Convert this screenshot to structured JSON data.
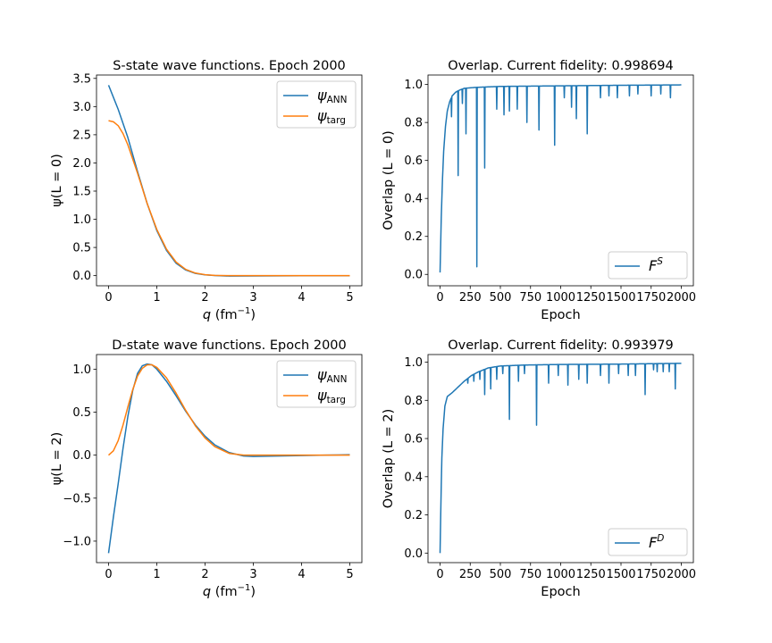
{
  "figure": {
    "background": "#ffffff"
  },
  "chart_data": [
    {
      "id": "s-wave",
      "type": "line",
      "title": "S-state wave functions. Epoch 2000",
      "xlabel": "q",
      "xlabel_unit": "(fm",
      "xlabel_unit_exp": "−1",
      "xlabel_unit_close": ")",
      "ylabel": "ψ(L = 0)",
      "xlim": [
        -0.25,
        5.25
      ],
      "ylim": [
        -0.18,
        3.56
      ],
      "xticks": [
        0,
        1,
        2,
        3,
        4,
        5
      ],
      "xtick_labels": [
        "0",
        "1",
        "2",
        "3",
        "4",
        "5"
      ],
      "yticks": [
        0,
        0.5,
        1.0,
        1.5,
        2.0,
        2.5,
        3.0,
        3.5
      ],
      "ytick_labels": [
        "0.0",
        "0.5",
        "1.0",
        "1.5",
        "2.0",
        "2.5",
        "3.0",
        "3.5"
      ],
      "grid": false,
      "legend": "top-right",
      "series": [
        {
          "name": "ψ",
          "sub": "ANN",
          "color": "#1f77b4",
          "x": [
            0,
            0.2,
            0.4,
            0.6,
            0.8,
            1.0,
            1.2,
            1.4,
            1.6,
            1.8,
            2.0,
            2.2,
            2.5,
            3.0,
            3.5,
            4.0,
            4.5,
            5.0
          ],
          "y": [
            3.38,
            2.95,
            2.45,
            1.85,
            1.28,
            0.8,
            0.45,
            0.22,
            0.1,
            0.04,
            0.015,
            0.003,
            -0.008,
            -0.005,
            -0.003,
            -0.002,
            -0.002,
            -0.002
          ]
        },
        {
          "name": "ψ",
          "sub": "targ",
          "color": "#ff7f0e",
          "x": [
            0,
            0.1,
            0.2,
            0.3,
            0.4,
            0.6,
            0.8,
            1.0,
            1.2,
            1.4,
            1.6,
            1.8,
            2.0,
            2.2,
            2.5,
            3.0,
            3.5,
            4.0,
            4.5,
            5.0
          ],
          "y": [
            2.75,
            2.73,
            2.66,
            2.52,
            2.32,
            1.82,
            1.28,
            0.82,
            0.47,
            0.24,
            0.11,
            0.045,
            0.017,
            0.005,
            0.0,
            0.0,
            0.0,
            0.0,
            0.0,
            0.0
          ]
        }
      ]
    },
    {
      "id": "s-overlap",
      "type": "line",
      "title": "Overlap. Current fidelity: 0.998694",
      "xlabel": "Epoch",
      "ylabel": "Overlap (L = 0)",
      "xlim": [
        -100,
        2100
      ],
      "ylim": [
        -0.06,
        1.05
      ],
      "xticks": [
        0,
        250,
        500,
        750,
        1000,
        1250,
        1500,
        1750,
        2000
      ],
      "xtick_labels": [
        "0",
        "250",
        "500",
        "750",
        "1000",
        "1250",
        "1500",
        "1750",
        "2000"
      ],
      "yticks": [
        0,
        0.2,
        0.4,
        0.6,
        0.8,
        1.0
      ],
      "ytick_labels": [
        "0.0",
        "0.2",
        "0.4",
        "0.6",
        "0.8",
        "1.0"
      ],
      "grid": false,
      "legend": "bottom-right",
      "series": [
        {
          "name": "F",
          "sup": "S",
          "color": "#1f77b4",
          "base": [
            [
              0,
              0.01
            ],
            [
              10,
              0.3
            ],
            [
              20,
              0.5
            ],
            [
              30,
              0.65
            ],
            [
              45,
              0.78
            ],
            [
              60,
              0.86
            ],
            [
              80,
              0.91
            ],
            [
              100,
              0.94
            ],
            [
              130,
              0.96
            ],
            [
              160,
              0.97
            ],
            [
              200,
              0.98
            ],
            [
              300,
              0.985
            ],
            [
              500,
              0.99
            ],
            [
              1000,
              0.993
            ],
            [
              1500,
              0.996
            ],
            [
              2000,
              0.998
            ]
          ],
          "dips": [
            [
              95,
              0.83
            ],
            [
              150,
              0.52
            ],
            [
              185,
              0.9
            ],
            [
              215,
              0.74
            ],
            [
              305,
              0.04
            ],
            [
              370,
              0.56
            ],
            [
              470,
              0.87
            ],
            [
              530,
              0.84
            ],
            [
              575,
              0.86
            ],
            [
              640,
              0.87
            ],
            [
              720,
              0.8
            ],
            [
              820,
              0.76
            ],
            [
              950,
              0.68
            ],
            [
              1030,
              0.93
            ],
            [
              1090,
              0.88
            ],
            [
              1130,
              0.82
            ],
            [
              1220,
              0.74
            ],
            [
              1330,
              0.93
            ],
            [
              1400,
              0.94
            ],
            [
              1470,
              0.93
            ],
            [
              1570,
              0.94
            ],
            [
              1640,
              0.95
            ],
            [
              1750,
              0.94
            ],
            [
              1830,
              0.95
            ],
            [
              1910,
              0.93
            ]
          ]
        }
      ]
    },
    {
      "id": "d-wave",
      "type": "line",
      "title": "D-state wave functions. Epoch 2000",
      "xlabel": "q",
      "xlabel_unit": "(fm",
      "xlabel_unit_exp": "−1",
      "xlabel_unit_close": ")",
      "ylabel": "ψ(L = 2)",
      "xlim": [
        -0.25,
        5.25
      ],
      "ylim": [
        -1.25,
        1.17
      ],
      "xticks": [
        0,
        1,
        2,
        3,
        4,
        5
      ],
      "xtick_labels": [
        "0",
        "1",
        "2",
        "3",
        "4",
        "5"
      ],
      "yticks": [
        -1.0,
        -0.5,
        0,
        0.5,
        1.0
      ],
      "ytick_labels": [
        "−1.0",
        "−0.5",
        "0.0",
        "0.5",
        "1.0"
      ],
      "grid": false,
      "legend": "top-right",
      "series": [
        {
          "name": "ψ",
          "sub": "ANN",
          "color": "#1f77b4",
          "x": [
            0,
            0.1,
            0.2,
            0.3,
            0.4,
            0.5,
            0.6,
            0.7,
            0.8,
            0.9,
            1.0,
            1.2,
            1.4,
            1.6,
            1.8,
            2.0,
            2.2,
            2.5,
            2.8,
            3.0,
            3.5,
            4.0,
            4.5,
            5.0
          ],
          "y": [
            -1.14,
            -0.72,
            -0.33,
            0.08,
            0.45,
            0.75,
            0.95,
            1.04,
            1.06,
            1.05,
            1.0,
            0.86,
            0.69,
            0.51,
            0.35,
            0.22,
            0.12,
            0.03,
            -0.01,
            -0.015,
            -0.01,
            -0.005,
            0.0,
            0.005
          ]
        },
        {
          "name": "ψ",
          "sub": "targ",
          "color": "#ff7f0e",
          "x": [
            0,
            0.1,
            0.2,
            0.3,
            0.4,
            0.5,
            0.6,
            0.7,
            0.8,
            0.9,
            1.0,
            1.2,
            1.4,
            1.6,
            1.8,
            2.0,
            2.2,
            2.5,
            2.8,
            3.0,
            3.5,
            4.0,
            4.5,
            5.0
          ],
          "y": [
            0.0,
            0.05,
            0.17,
            0.35,
            0.56,
            0.76,
            0.92,
            1.01,
            1.05,
            1.05,
            1.02,
            0.9,
            0.72,
            0.52,
            0.34,
            0.2,
            0.1,
            0.02,
            0.0,
            0.0,
            0.0,
            0.0,
            0.0,
            0.0
          ]
        }
      ]
    },
    {
      "id": "d-overlap",
      "type": "line",
      "title": "Overlap. Current fidelity: 0.993979",
      "xlabel": "Epoch",
      "ylabel": "Overlap (L = 2)",
      "xlim": [
        -100,
        2100
      ],
      "ylim": [
        -0.05,
        1.04
      ],
      "xticks": [
        0,
        250,
        500,
        750,
        1000,
        1250,
        1500,
        1750,
        2000
      ],
      "xtick_labels": [
        "0",
        "250",
        "500",
        "750",
        "1000",
        "1250",
        "1500",
        "1750",
        "2000"
      ],
      "yticks": [
        0,
        0.2,
        0.4,
        0.6,
        0.8,
        1.0
      ],
      "ytick_labels": [
        "0.0",
        "0.2",
        "0.4",
        "0.6",
        "0.8",
        "1.0"
      ],
      "grid": false,
      "legend": "bottom-right",
      "series": [
        {
          "name": "F",
          "sup": "D",
          "color": "#1f77b4",
          "base": [
            [
              0,
              0.0
            ],
            [
              8,
              0.3
            ],
            [
              15,
              0.5
            ],
            [
              25,
              0.65
            ],
            [
              40,
              0.77
            ],
            [
              60,
              0.82
            ],
            [
              100,
              0.84
            ],
            [
              150,
              0.87
            ],
            [
              200,
              0.9
            ],
            [
              260,
              0.93
            ],
            [
              320,
              0.95
            ],
            [
              400,
              0.97
            ],
            [
              500,
              0.98
            ],
            [
              700,
              0.985
            ],
            [
              1000,
              0.988
            ],
            [
              1500,
              0.99
            ],
            [
              2000,
              0.994
            ]
          ],
          "dips": [
            [
              230,
              0.89
            ],
            [
              280,
              0.9
            ],
            [
              330,
              0.91
            ],
            [
              370,
              0.83
            ],
            [
              420,
              0.86
            ],
            [
              470,
              0.91
            ],
            [
              520,
              0.94
            ],
            [
              575,
              0.7
            ],
            [
              650,
              0.9
            ],
            [
              700,
              0.94
            ],
            [
              800,
              0.67
            ],
            [
              900,
              0.89
            ],
            [
              980,
              0.93
            ],
            [
              1060,
              0.88
            ],
            [
              1150,
              0.91
            ],
            [
              1220,
              0.89
            ],
            [
              1330,
              0.93
            ],
            [
              1400,
              0.89
            ],
            [
              1480,
              0.94
            ],
            [
              1560,
              0.93
            ],
            [
              1620,
              0.93
            ],
            [
              1700,
              0.83
            ],
            [
              1770,
              0.96
            ],
            [
              1800,
              0.95
            ],
            [
              1850,
              0.95
            ],
            [
              1900,
              0.95
            ],
            [
              1950,
              0.86
            ]
          ]
        }
      ]
    }
  ]
}
